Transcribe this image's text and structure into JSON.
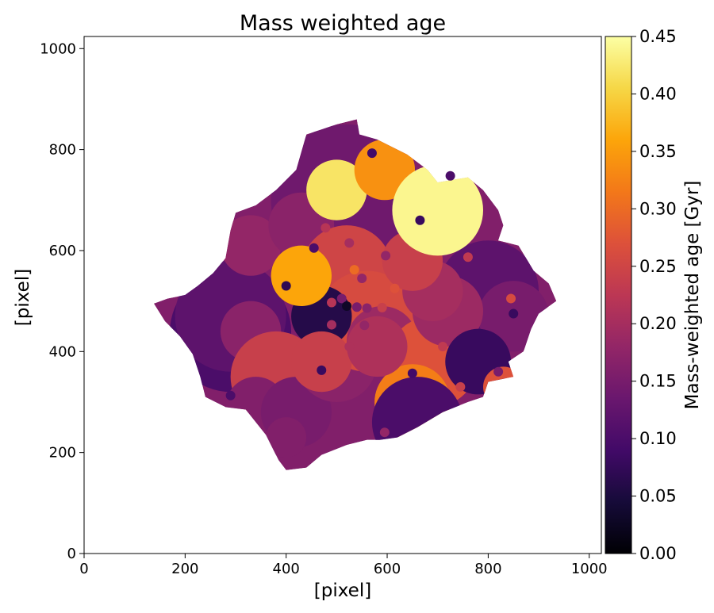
{
  "chart_data": {
    "type": "heatmap",
    "title": "Mass weighted age",
    "xlabel": "[pixel]",
    "ylabel": "[pixel]",
    "xlim": [
      0,
      1024
    ],
    "ylim": [
      0,
      1024
    ],
    "xticks": [
      0,
      200,
      400,
      600,
      800,
      1000
    ],
    "yticks": [
      0,
      200,
      400,
      600,
      800,
      1000
    ],
    "colorbar": {
      "label": "Mass-weighted age [Gyr]",
      "range": [
        0.0,
        0.45
      ],
      "ticks": [
        "0.00",
        "0.05",
        "0.10",
        "0.15",
        "0.20",
        "0.25",
        "0.30",
        "0.35",
        "0.40",
        "0.45"
      ],
      "colormap": "inferno"
    },
    "galaxy_outline": [
      [
        138,
        495
      ],
      [
        165,
        505
      ],
      [
        200,
        512
      ],
      [
        225,
        530
      ],
      [
        255,
        555
      ],
      [
        280,
        585
      ],
      [
        290,
        640
      ],
      [
        300,
        675
      ],
      [
        340,
        690
      ],
      [
        380,
        720
      ],
      [
        420,
        760
      ],
      [
        440,
        830
      ],
      [
        470,
        840
      ],
      [
        500,
        850
      ],
      [
        540,
        860
      ],
      [
        545,
        830
      ],
      [
        580,
        820
      ],
      [
        600,
        810
      ],
      [
        640,
        790
      ],
      [
        680,
        760
      ],
      [
        700,
        735
      ],
      [
        730,
        740
      ],
      [
        760,
        745
      ],
      [
        790,
        720
      ],
      [
        820,
        680
      ],
      [
        830,
        650
      ],
      [
        820,
        620
      ],
      [
        860,
        610
      ],
      [
        890,
        560
      ],
      [
        920,
        535
      ],
      [
        935,
        500
      ],
      [
        900,
        475
      ],
      [
        885,
        445
      ],
      [
        870,
        400
      ],
      [
        840,
        380
      ],
      [
        850,
        350
      ],
      [
        800,
        340
      ],
      [
        790,
        310
      ],
      [
        760,
        300
      ],
      [
        710,
        280
      ],
      [
        660,
        250
      ],
      [
        620,
        230
      ],
      [
        585,
        225
      ],
      [
        560,
        225
      ],
      [
        520,
        215
      ],
      [
        470,
        195
      ],
      [
        440,
        170
      ],
      [
        400,
        165
      ],
      [
        385,
        185
      ],
      [
        360,
        235
      ],
      [
        320,
        285
      ],
      [
        280,
        290
      ],
      [
        240,
        310
      ],
      [
        230,
        350
      ],
      [
        215,
        395
      ],
      [
        190,
        430
      ],
      [
        160,
        460
      ],
      [
        138,
        495
      ]
    ],
    "regions": [
      {
        "x": 290,
        "y": 440,
        "r": 120,
        "age": 0.1
      },
      {
        "x": 290,
        "y": 470,
        "r": 110,
        "age": 0.12
      },
      {
        "x": 520,
        "y": 700,
        "r": 150,
        "age": 0.14
      },
      {
        "x": 600,
        "y": 690,
        "r": 80,
        "age": 0.14
      },
      {
        "x": 330,
        "y": 610,
        "r": 60,
        "age": 0.18
      },
      {
        "x": 430,
        "y": 650,
        "r": 65,
        "age": 0.17
      },
      {
        "x": 520,
        "y": 560,
        "r": 90,
        "age": 0.25
      },
      {
        "x": 330,
        "y": 440,
        "r": 60,
        "age": 0.17
      },
      {
        "x": 380,
        "y": 350,
        "r": 90,
        "age": 0.24
      },
      {
        "x": 340,
        "y": 290,
        "r": 60,
        "age": 0.16
      },
      {
        "x": 420,
        "y": 280,
        "r": 70,
        "age": 0.15
      },
      {
        "x": 500,
        "y": 380,
        "r": 80,
        "age": 0.17
      },
      {
        "x": 560,
        "y": 460,
        "r": 100,
        "age": 0.26
      },
      {
        "x": 590,
        "y": 420,
        "r": 70,
        "age": 0.19
      },
      {
        "x": 690,
        "y": 380,
        "r": 90,
        "age": 0.27
      },
      {
        "x": 650,
        "y": 300,
        "r": 75,
        "age": 0.32
      },
      {
        "x": 660,
        "y": 260,
        "r": 90,
        "age": 0.1
      },
      {
        "x": 800,
        "y": 520,
        "r": 100,
        "age": 0.12
      },
      {
        "x": 850,
        "y": 470,
        "r": 70,
        "age": 0.15
      },
      {
        "x": 720,
        "y": 480,
        "r": 70,
        "age": 0.19
      },
      {
        "x": 690,
        "y": 520,
        "r": 60,
        "age": 0.2
      },
      {
        "x": 650,
        "y": 580,
        "r": 60,
        "age": 0.24
      },
      {
        "x": 780,
        "y": 380,
        "r": 65,
        "age": 0.08
      },
      {
        "x": 830,
        "y": 330,
        "r": 40,
        "age": 0.27
      },
      {
        "x": 470,
        "y": 470,
        "r": 60,
        "age": 0.06
      },
      {
        "x": 430,
        "y": 550,
        "r": 60,
        "age": 0.36
      },
      {
        "x": 500,
        "y": 720,
        "r": 60,
        "age": 0.42
      },
      {
        "x": 595,
        "y": 760,
        "r": 60,
        "age": 0.34
      },
      {
        "x": 700,
        "y": 680,
        "r": 90,
        "age": 0.44
      },
      {
        "x": 470,
        "y": 380,
        "r": 60,
        "age": 0.24
      },
      {
        "x": 580,
        "y": 410,
        "r": 60,
        "age": 0.21
      },
      {
        "x": 400,
        "y": 230,
        "r": 40,
        "age": 0.16
      }
    ],
    "points": [
      {
        "x": 570,
        "y": 793,
        "age": 0.09
      },
      {
        "x": 725,
        "y": 748,
        "age": 0.1
      },
      {
        "x": 665,
        "y": 660,
        "age": 0.08
      },
      {
        "x": 478,
        "y": 645,
        "age": 0.22
      },
      {
        "x": 525,
        "y": 615,
        "age": 0.2
      },
      {
        "x": 455,
        "y": 605,
        "age": 0.1
      },
      {
        "x": 597,
        "y": 590,
        "age": 0.18
      },
      {
        "x": 760,
        "y": 587,
        "age": 0.23
      },
      {
        "x": 400,
        "y": 530,
        "age": 0.07
      },
      {
        "x": 535,
        "y": 562,
        "age": 0.3
      },
      {
        "x": 550,
        "y": 545,
        "age": 0.18
      },
      {
        "x": 615,
        "y": 525,
        "age": 0.27
      },
      {
        "x": 490,
        "y": 497,
        "age": 0.22
      },
      {
        "x": 510,
        "y": 505,
        "age": 0.15
      },
      {
        "x": 520,
        "y": 490,
        "age": 0.03
      },
      {
        "x": 540,
        "y": 488,
        "age": 0.15
      },
      {
        "x": 560,
        "y": 486,
        "age": 0.17
      },
      {
        "x": 590,
        "y": 487,
        "age": 0.24
      },
      {
        "x": 845,
        "y": 505,
        "age": 0.26
      },
      {
        "x": 850,
        "y": 475,
        "age": 0.08
      },
      {
        "x": 490,
        "y": 453,
        "age": 0.2
      },
      {
        "x": 555,
        "y": 452,
        "age": 0.18
      },
      {
        "x": 525,
        "y": 410,
        "age": 0.21
      },
      {
        "x": 710,
        "y": 410,
        "age": 0.23
      },
      {
        "x": 470,
        "y": 363,
        "age": 0.08
      },
      {
        "x": 650,
        "y": 357,
        "age": 0.09
      },
      {
        "x": 820,
        "y": 360,
        "age": 0.15
      },
      {
        "x": 290,
        "y": 313,
        "age": 0.1
      },
      {
        "x": 745,
        "y": 330,
        "age": 0.24
      },
      {
        "x": 595,
        "y": 240,
        "age": 0.18
      }
    ]
  }
}
